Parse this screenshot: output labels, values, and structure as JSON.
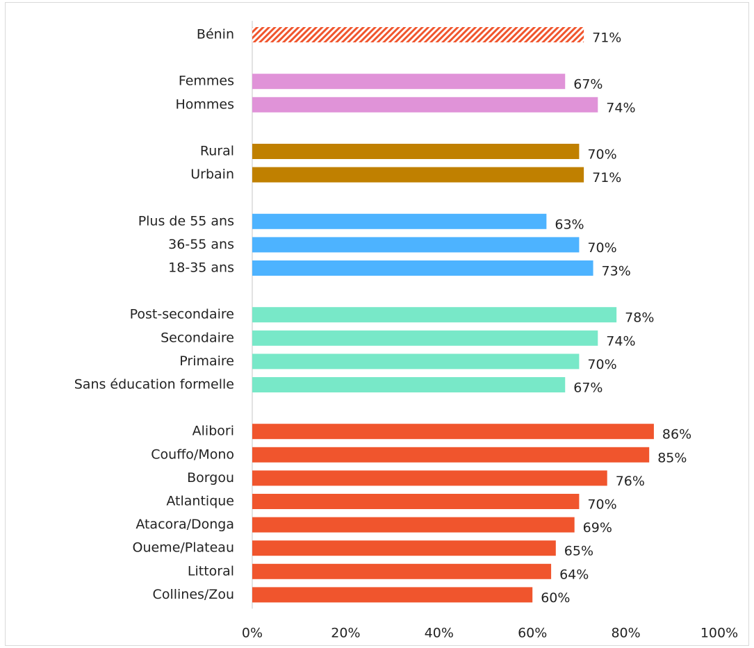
{
  "chart_data": {
    "type": "barh",
    "categories": [
      "Bénin",
      null,
      "Femmes",
      "Hommes",
      null,
      "Rural",
      "Urbain",
      null,
      "Plus de 55 ans",
      "36-55 ans",
      "18-35 ans",
      null,
      "Post-secondaire",
      "Secondaire",
      "Primaire",
      "Sans éducation formelle",
      null,
      "Alibori",
      "Couffo/Mono",
      "Borgou",
      "Atlantique",
      "Atacora/Donga",
      "Oueme/Plateau",
      "Littoral",
      "Collines/Zou"
    ],
    "values": [
      71,
      null,
      67,
      74,
      null,
      70,
      71,
      null,
      63,
      70,
      73,
      null,
      78,
      74,
      70,
      67,
      null,
      86,
      85,
      76,
      70,
      69,
      65,
      64,
      60
    ],
    "value_labels": [
      "71%",
      null,
      "67%",
      "74%",
      null,
      "70%",
      "71%",
      null,
      "63%",
      "70%",
      "73%",
      null,
      "78%",
      "74%",
      "70%",
      "67%",
      null,
      "86%",
      "85%",
      "76%",
      "70%",
      "69%",
      "65%",
      "64%",
      "60%"
    ],
    "colors": [
      "#f0552d",
      null,
      "#e093d8",
      "#e093d8",
      null,
      "#c08000",
      "#c08000",
      null,
      "#4db3ff",
      "#4db3ff",
      "#4db3ff",
      null,
      "#78e8c8",
      "#78e8c8",
      "#78e8c8",
      "#78e8c8",
      null,
      "#f0552d",
      "#f0552d",
      "#f0552d",
      "#f0552d",
      "#f0552d",
      "#f0552d",
      "#f0552d",
      "#f0552d"
    ],
    "hatched": [
      true,
      null,
      false,
      false,
      null,
      false,
      false,
      null,
      false,
      false,
      false,
      null,
      false,
      false,
      false,
      false,
      null,
      false,
      false,
      false,
      false,
      false,
      false,
      false,
      false
    ],
    "xlim": [
      0,
      100
    ],
    "xticks": [
      {
        "value": 0,
        "label": "0%"
      },
      {
        "value": 20,
        "label": "20%"
      },
      {
        "value": 40,
        "label": "40%"
      },
      {
        "value": 60,
        "label": "60%"
      },
      {
        "value": 80,
        "label": "80%"
      },
      {
        "value": 100,
        "label": "100%"
      }
    ],
    "grid": false
  }
}
